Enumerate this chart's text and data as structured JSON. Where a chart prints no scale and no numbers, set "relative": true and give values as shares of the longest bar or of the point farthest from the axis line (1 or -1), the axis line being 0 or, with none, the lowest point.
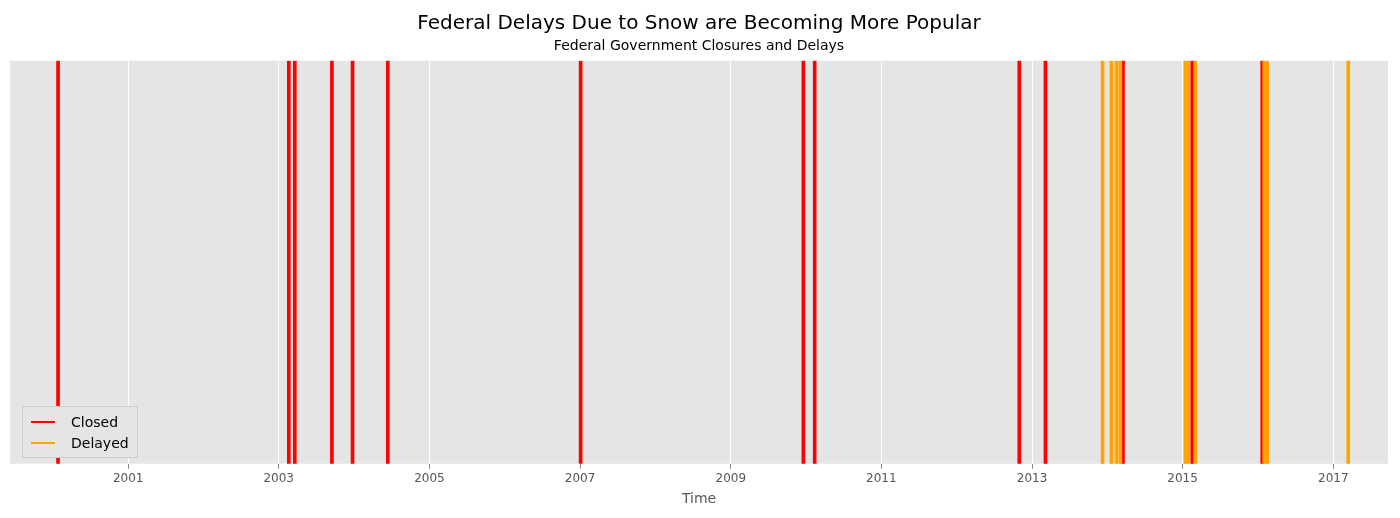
{
  "chart_data": {
    "type": "bar",
    "title": "Federal Delays Due to Snow are Becoming More Popular",
    "subtitle": "Federal Government Closures and Delays",
    "xlabel": "Time",
    "relative": true,
    "series": [
      {
        "name": "Closed",
        "color": "#ff0000",
        "x": [
          "2000-01-27",
          "2003-02-19",
          "2003-03-20",
          "2003-09-16",
          "2003-12-25",
          "2004-06-13",
          "2007-01-04",
          "2009-12-19",
          "2010-02-12",
          "2012-10-31",
          "2013-03-07",
          "2014-03-18",
          "2015-02-17",
          "2016-01-22"
        ],
        "values": [
          1,
          1,
          1,
          1,
          1,
          1,
          1,
          1,
          1,
          1,
          1,
          1,
          1,
          1
        ]
      },
      {
        "name": "Delayed",
        "color": "#ffa500",
        "x": [
          "2013-12-09",
          "2014-01-21",
          "2014-02-14",
          "2014-03-05",
          "2015-01-14",
          "2015-01-28",
          "2015-03-03",
          "2016-02-01",
          "2016-02-15",
          "2017-03-14"
        ],
        "values": [
          1,
          1,
          1,
          1,
          1,
          1,
          1,
          1,
          1,
          1
        ]
      }
    ],
    "xlim": [
      "1999-06-08",
      "2017-09-23"
    ],
    "xticks": [
      "2001",
      "2003",
      "2005",
      "2007",
      "2009",
      "2011",
      "2013",
      "2015",
      "2017"
    ],
    "grid": "x",
    "legend": "bottom left"
  }
}
